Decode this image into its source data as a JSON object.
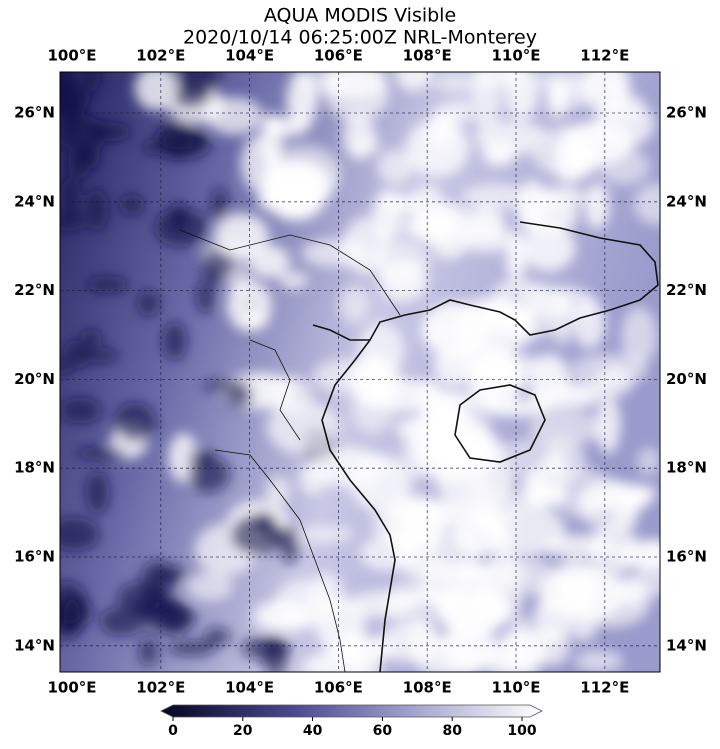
{
  "title": [
    "AQUA MODIS Visible",
    "2020/10/14 06:25:00Z NRL-Monterey"
  ],
  "lon_labels": [
    "100°E",
    "102°E",
    "104°E",
    "106°E",
    "108°E",
    "110°E",
    "112°E"
  ],
  "lat_labels": [
    "26°N",
    "24°N",
    "22°N",
    "20°N",
    "18°N",
    "16°N",
    "14°N"
  ],
  "colorbar": {
    "lim": [
      0,
      100
    ],
    "ticks": [
      0,
      20,
      40,
      60,
      80,
      100
    ]
  }
}
